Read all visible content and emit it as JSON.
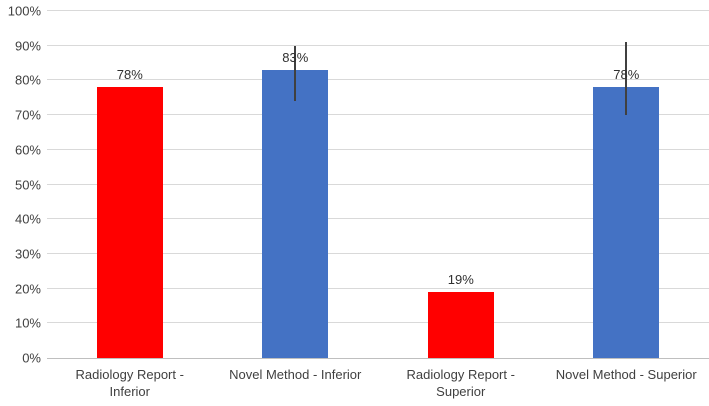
{
  "chart_data": {
    "type": "bar",
    "title": "",
    "xlabel": "",
    "ylabel": "",
    "categories": [
      "Radiology Report - Inferior",
      "Novel Method - Inferior",
      "Radiology Report - Superior",
      "Novel Method - Superior"
    ],
    "category_label_lines": [
      [
        "Radiology Report -",
        "Inferior"
      ],
      [
        "Novel Method - Inferior"
      ],
      [
        "Radiology Report -",
        "Superior"
      ],
      [
        "Novel Method - Superior"
      ]
    ],
    "values": [
      78,
      83,
      19,
      78
    ],
    "value_labels": [
      "78%",
      "83%",
      "19%",
      "78%"
    ],
    "bar_colors": [
      "#ff0000",
      "#4472c4",
      "#ff0000",
      "#4472c4"
    ],
    "error_bars": [
      null,
      {
        "low": 74,
        "high": 90
      },
      null,
      {
        "low": 70,
        "high": 91
      }
    ],
    "ylim": [
      0,
      100
    ],
    "ytick_step": 10,
    "ytick_labels": [
      "0%",
      "10%",
      "20%",
      "30%",
      "40%",
      "50%",
      "60%",
      "70%",
      "80%",
      "90%",
      "100%"
    ],
    "grid": "horizontal",
    "legend": "none",
    "colors": {
      "background": "#ffffff",
      "gridline": "#d9d9d9",
      "axis_line": "#bfbfbf",
      "text": "#404040",
      "error_bar": "#404040",
      "red_series": "#ff0000",
      "blue_series": "#4472c4"
    }
  }
}
